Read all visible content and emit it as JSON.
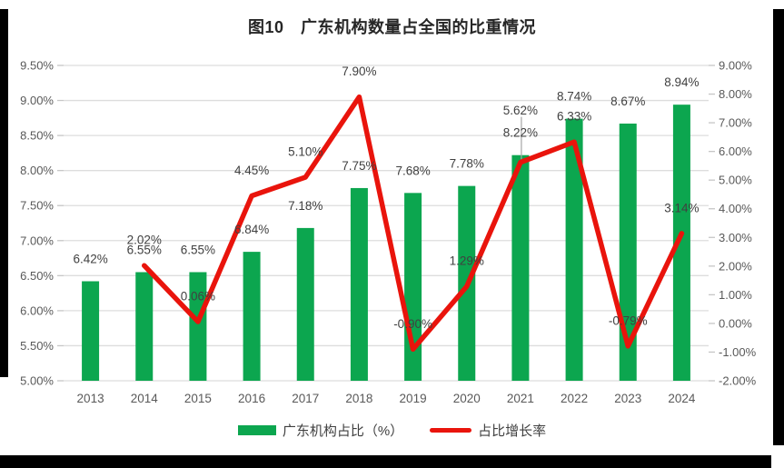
{
  "chart_data": {
    "type": "bar+line",
    "title": "图10　广东机构数量占全国的比重情况",
    "categories": [
      "2013",
      "2014",
      "2015",
      "2016",
      "2017",
      "2018",
      "2019",
      "2020",
      "2021",
      "2022",
      "2023",
      "2024"
    ],
    "series": [
      {
        "name": "广东机构占比（%）",
        "type": "bar",
        "axis": "left",
        "color": "#0CA64F",
        "values": [
          6.42,
          6.55,
          6.55,
          6.84,
          7.18,
          7.75,
          7.68,
          7.78,
          8.22,
          8.74,
          8.67,
          8.94
        ],
        "labels": [
          "6.42%",
          "6.55%",
          "6.55%",
          "6.84%",
          "7.18%",
          "7.75%",
          "7.68%",
          "7.78%",
          "8.22%",
          "8.74%",
          "8.67%",
          "8.94%"
        ]
      },
      {
        "name": "占比增长率",
        "type": "line",
        "axis": "right",
        "color": "#E9140C",
        "values": [
          null,
          2.02,
          0.06,
          4.45,
          5.1,
          7.9,
          -0.9,
          1.29,
          5.62,
          6.33,
          -0.79,
          3.14
        ],
        "labels": [
          "",
          "2.02%",
          "0.06%",
          "4.45%",
          "5.10%",
          "7.90%",
          "-0.90%",
          "1.29%",
          "5.62%",
          "6.33%",
          "-0.79%",
          "3.14%"
        ]
      }
    ],
    "left_axis": {
      "min": 5.0,
      "max": 9.5,
      "step": 0.5,
      "ticks": [
        "5.00%",
        "5.50%",
        "6.00%",
        "6.50%",
        "7.00%",
        "7.50%",
        "8.00%",
        "8.50%",
        "9.00%",
        "9.50%"
      ]
    },
    "right_axis": {
      "min": -2.0,
      "max": 9.0,
      "step": 1.0,
      "ticks": [
        "-2.00%",
        "-1.00%",
        "0.00%",
        "1.00%",
        "2.00%",
        "3.00%",
        "4.00%",
        "5.00%",
        "6.00%",
        "7.00%",
        "8.00%",
        "9.00%"
      ]
    },
    "layout_hints": {
      "grid": "horizontal-only",
      "legend_position": "bottom-center",
      "grid_color": "#DDDDDD",
      "tick_color": "#C6C6C6",
      "axis_text_color": "#595959",
      "data_label_color": "#404040",
      "line_label_overrides": {
        "8": {
          "dy": -57,
          "leader": true
        }
      }
    }
  }
}
